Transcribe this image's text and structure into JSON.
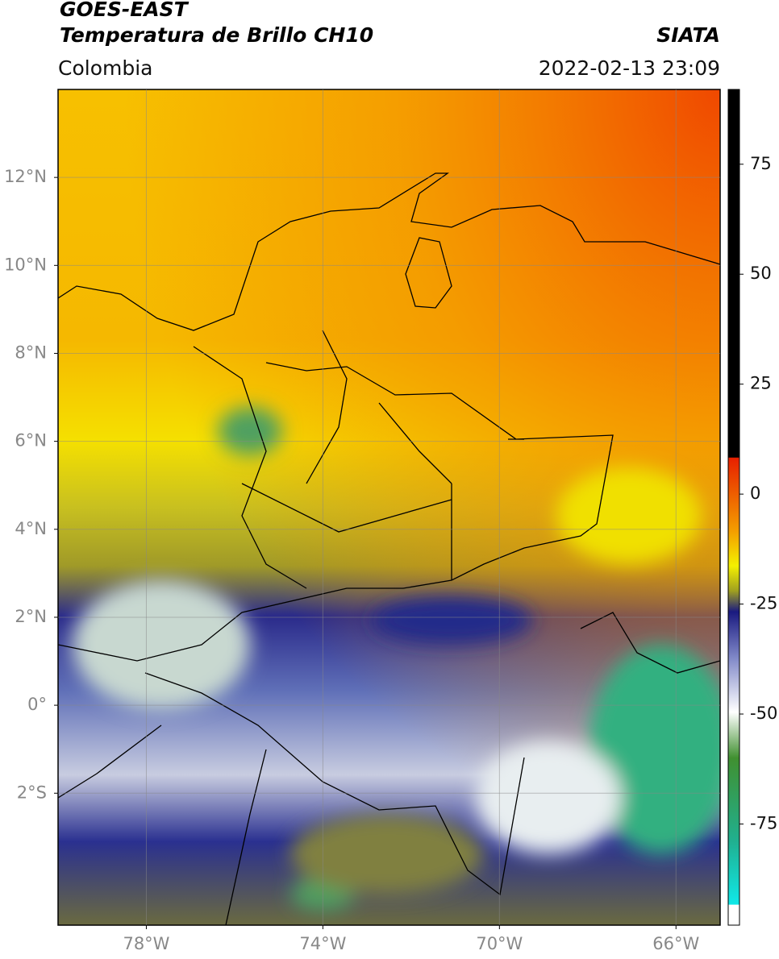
{
  "header": {
    "title": "GOES-EAST",
    "subtitle": "Temperatura de Brillo CH10",
    "source": "SIATA",
    "region": "Colombia",
    "datetime": "2022-02-13 23:09"
  },
  "map": {
    "xlim": [
      -80,
      -65
    ],
    "ylim": [
      -5,
      14
    ],
    "xticks": [
      {
        "value": -78,
        "label": "78°W"
      },
      {
        "value": -74,
        "label": "74°W"
      },
      {
        "value": -70,
        "label": "70°W"
      },
      {
        "value": -66,
        "label": "66°W"
      }
    ],
    "yticks": [
      {
        "value": 12,
        "label": "12°N"
      },
      {
        "value": 10,
        "label": "10°N"
      },
      {
        "value": 8,
        "label": "8°N"
      },
      {
        "value": 6,
        "label": "6°N"
      },
      {
        "value": 4,
        "label": "4°N"
      },
      {
        "value": 2,
        "label": "2°N"
      },
      {
        "value": 0,
        "label": "0°"
      },
      {
        "value": -2,
        "label": "2°S"
      }
    ],
    "grid": true
  },
  "colorbar": {
    "lim": [
      -98,
      92
    ],
    "ticks": [
      75,
      50,
      25,
      0,
      -25,
      -50,
      -75
    ]
  }
}
